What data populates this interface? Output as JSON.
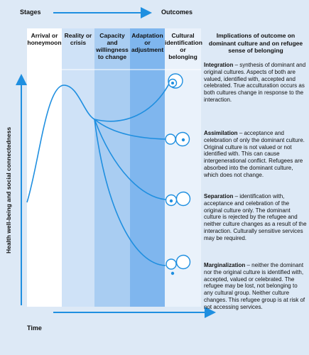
{
  "header": {
    "stages": "Stages",
    "outcomes": "Outcomes"
  },
  "columns": [
    "Arrival or honeymoon",
    "Reality or crisis",
    "Capacity and willingness to change",
    "Adaptation or adjustment",
    "Cultural identification or belonging",
    "Implications of outcome on dominant culture and on refugee sense of belonging"
  ],
  "axes": {
    "y": "Health well-being and social connectedness",
    "x": "Time"
  },
  "outcomes": [
    {
      "term": "Integration",
      "description": "– synthesis of dominant and original cultures. Aspects of both are valued, identified with, accepted and celebrated. True acculturation occurs as both cultures change in response to the interaction."
    },
    {
      "term": "Assimilation",
      "description": "– acceptance and celebration of only the dominant culture. Original culture is not valued or not identified with. This can cause intergenerational conflict. Refugees are absorbed into the dominant culture, which does not change."
    },
    {
      "term": "Separation",
      "description": "– identification with, acceptance and celebration of the original culture only. The dominant culture is rejected by the refugee and neither culture changes as a result of the interaction. Culturally sensitive services may be required."
    },
    {
      "term": "Marginalization",
      "description": "– neither the dominant nor the original culture is identified with, accepted, valued or celebrated. The refugee may be lost, not belonging to any cultural group. Neither culture changes. This refugee group is at risk of not accessing services."
    }
  ]
}
